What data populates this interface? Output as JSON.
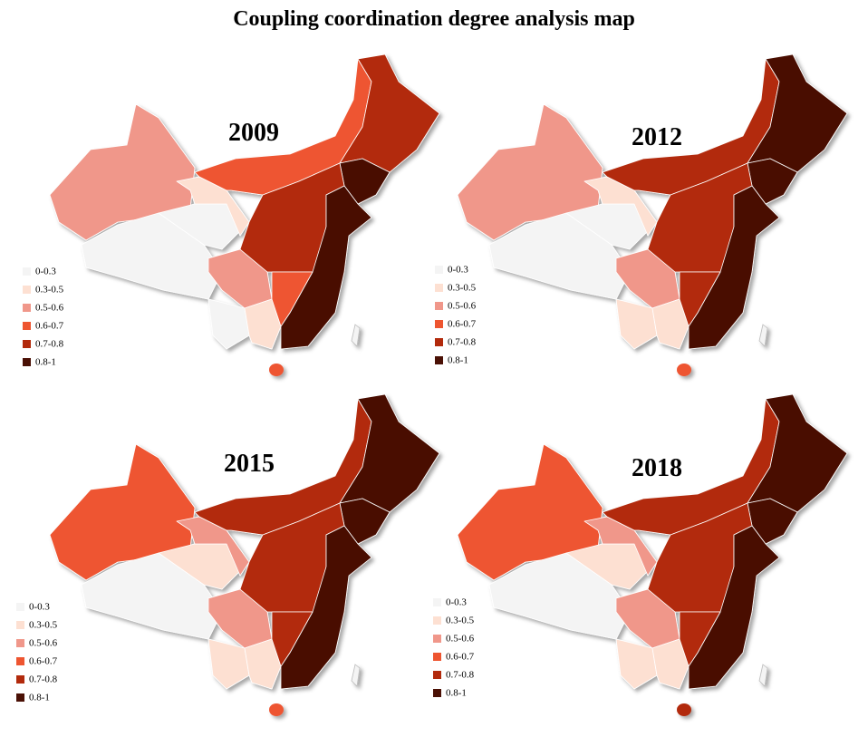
{
  "title": "Coupling coordination degree analysis map",
  "legend": [
    {
      "label": "0-0.3",
      "color": "#f4f4f4"
    },
    {
      "label": "0.3-0.5",
      "color": "#fde0d2"
    },
    {
      "label": "0.5-0.6",
      "color": "#f0978a"
    },
    {
      "label": "0.6-0.7",
      "color": "#ee5530"
    },
    {
      "label": "0.7-0.8",
      "color": "#b22a0c"
    },
    {
      "label": "0.8-1",
      "color": "#4a1005"
    }
  ],
  "panels": [
    {
      "year": "2009",
      "classes": [
        2,
        0,
        0,
        1,
        3,
        4,
        5,
        2,
        0,
        1,
        4,
        5,
        3,
        3
      ]
    },
    {
      "year": "2012",
      "classes": [
        2,
        0,
        0,
        1,
        4,
        5,
        5,
        2,
        1,
        1,
        4,
        5,
        4,
        3
      ]
    },
    {
      "year": "2015",
      "classes": [
        3,
        0,
        1,
        2,
        4,
        5,
        5,
        2,
        1,
        1,
        4,
        5,
        4,
        3
      ]
    },
    {
      "year": "2018",
      "classes": [
        3,
        0,
        1,
        2,
        4,
        5,
        5,
        2,
        1,
        1,
        4,
        5,
        4,
        4
      ]
    }
  ]
}
